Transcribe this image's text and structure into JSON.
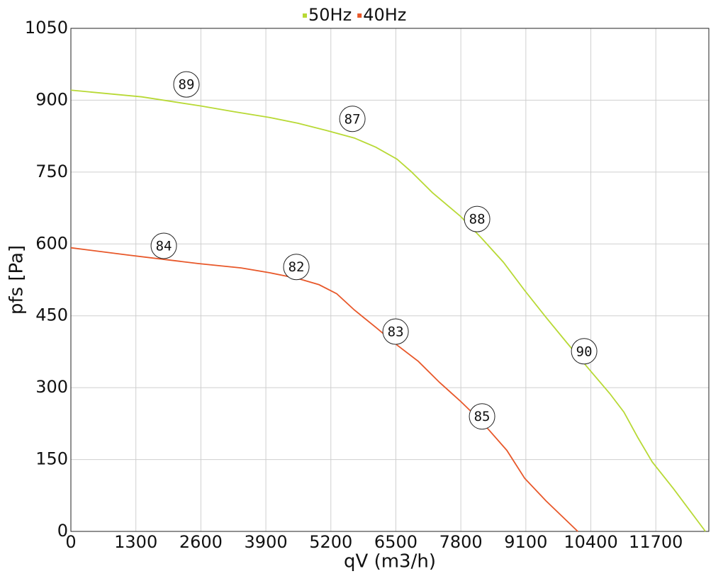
{
  "chart_data": {
    "type": "line",
    "xlabel": "qV (m3/h)",
    "ylabel": "pfs [Pa]",
    "xlim": [
      0,
      12760
    ],
    "ylim": [
      0,
      1050
    ],
    "xticks": [
      0,
      1300,
      2600,
      3900,
      5200,
      6500,
      7800,
      9100,
      10400,
      11700
    ],
    "yticks": [
      0,
      150,
      300,
      450,
      600,
      750,
      900,
      1050
    ],
    "grid": true,
    "legend": "top",
    "series": [
      {
        "name": "50Hz",
        "color": "#b8d935",
        "x": [
          0,
          1418,
          2595,
          3261,
          3970,
          4538,
          5105,
          5672,
          6098,
          6523,
          6807,
          7232,
          7800,
          8225,
          8650,
          9076,
          9501,
          9927,
          10352,
          10777,
          11061,
          11345,
          11628,
          12054,
          12692
        ],
        "values": [
          921,
          907,
          888,
          876,
          864,
          852,
          837,
          821,
          802,
          777,
          751,
          707,
          657,
          611,
          562,
          503,
          447,
          393,
          340,
          288,
          249,
          195,
          145,
          89,
          0
        ]
      },
      {
        "name": "40Hz",
        "color": "#e8582a",
        "x": [
          0,
          1134,
          1843,
          2552,
          3403,
          3970,
          4538,
          4963,
          5318,
          5672,
          6098,
          6523,
          6949,
          7374,
          7800,
          8225,
          8721,
          9076,
          9501,
          10139
        ],
        "values": [
          592,
          577,
          568,
          559,
          550,
          540,
          528,
          515,
          496,
          462,
          426,
          389,
          355,
          311,
          271,
          228,
          169,
          111,
          64,
          0
        ]
      }
    ],
    "annotations": [
      {
        "text": "89",
        "x": 2311,
        "y": 933
      },
      {
        "text": "87",
        "x": 5630,
        "y": 861
      },
      {
        "text": "88",
        "x": 8125,
        "y": 652
      },
      {
        "text": "90",
        "x": 10266,
        "y": 376
      },
      {
        "text": "84",
        "x": 1858,
        "y": 596
      },
      {
        "text": "82",
        "x": 4509,
        "y": 552
      },
      {
        "text": "83",
        "x": 6495,
        "y": 417
      },
      {
        "text": "85",
        "x": 8224,
        "y": 240
      }
    ]
  }
}
